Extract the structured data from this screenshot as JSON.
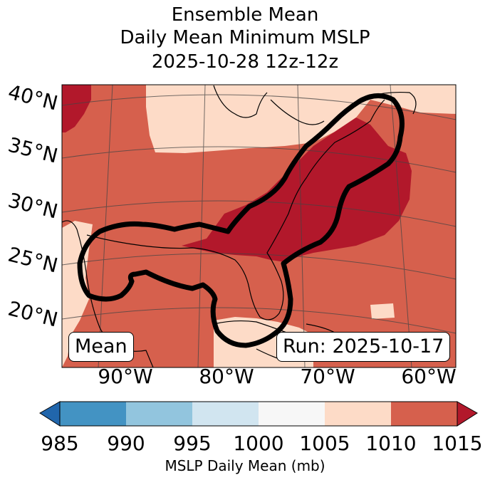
{
  "title": {
    "line1": "Ensemble Mean",
    "line2": "Daily Mean Minimum MSLP",
    "line3": "2025-10-28 12z-12z"
  },
  "map": {
    "lat_labels": [
      "40°N",
      "35°N",
      "30°N",
      "25°N",
      "20°N"
    ],
    "lon_labels": [
      "90°W",
      "80°W",
      "70°W",
      "60°W"
    ],
    "mean_label": "Mean",
    "run_label": "Run: 2025-10-17",
    "colors": {
      "c1010_1015": "#d6604d",
      "c1015_plus": "#b2182b",
      "c1005_1010": "#fddbc7",
      "outline": "#000000"
    }
  },
  "colorbar": {
    "ticks": [
      "985",
      "990",
      "995",
      "1000",
      "1005",
      "1010",
      "1015"
    ],
    "label": "MSLP Daily Mean (mb)",
    "colors": [
      "#2166ac",
      "#4393c3",
      "#92c5de",
      "#d1e5f0",
      "#f7f7f7",
      "#fddbc7",
      "#d6604d",
      "#b2182b"
    ]
  }
}
